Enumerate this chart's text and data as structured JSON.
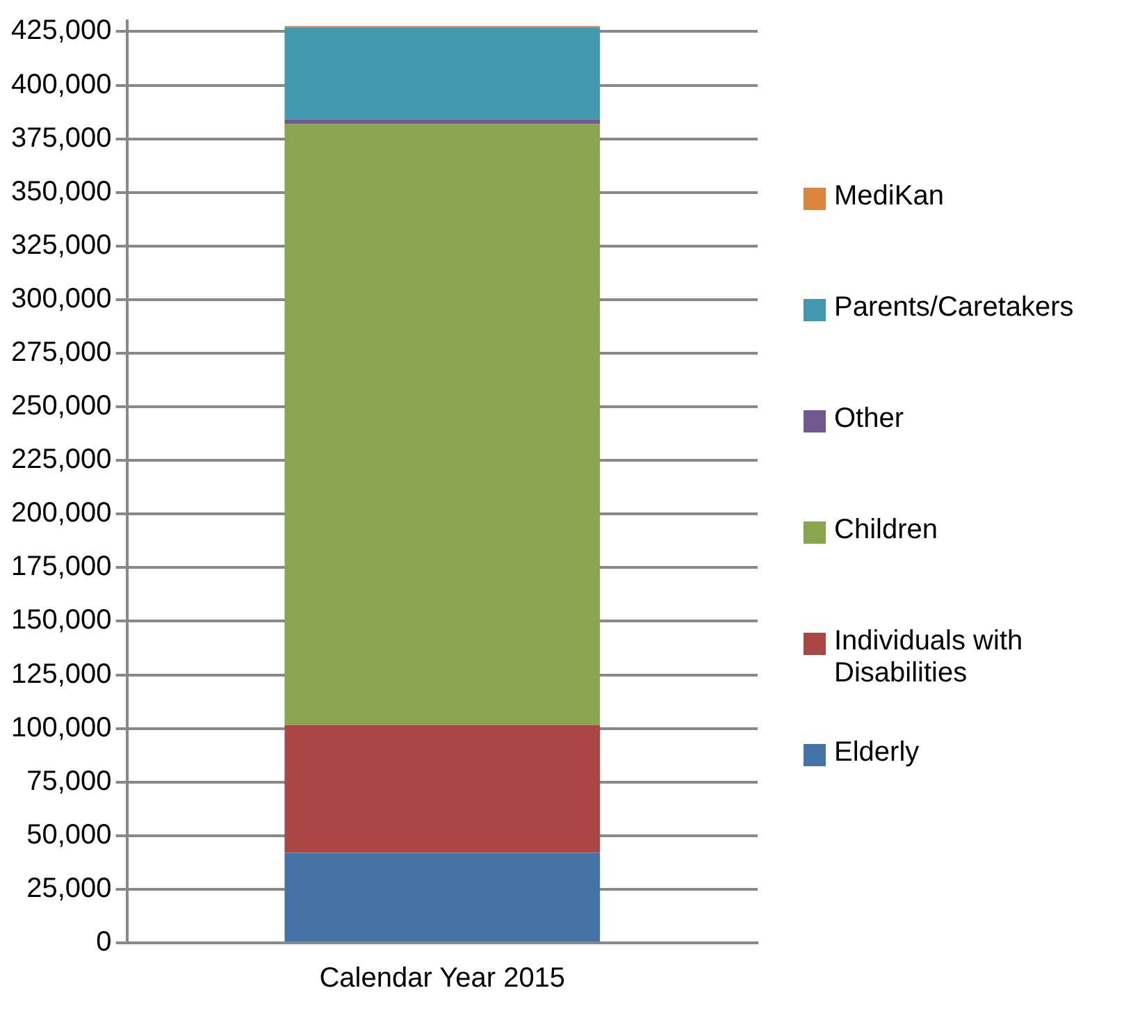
{
  "chart_data": {
    "type": "bar",
    "stacked": true,
    "categories": [
      "Calendar Year 2015"
    ],
    "series": [
      {
        "name": "Elderly",
        "color": "#4572a7",
        "values": [
          42000
        ]
      },
      {
        "name": "Individuals with Disabilities",
        "color": "#aa4643",
        "values": [
          59600
        ]
      },
      {
        "name": "Children",
        "color": "#89a54e",
        "values": [
          280300
        ]
      },
      {
        "name": "Other",
        "color": "#71588f",
        "values": [
          2200
        ]
      },
      {
        "name": "Parents/Caretakers",
        "color": "#4198af",
        "values": [
          42900
        ]
      },
      {
        "name": "MediKan",
        "color": "#db843d",
        "values": [
          600
        ]
      }
    ],
    "ylim": [
      0,
      430000
    ],
    "yticks": [
      0,
      {
        "value": 25000,
        "label": "25,000"
      },
      {
        "value": 50000,
        "label": "50,000"
      },
      {
        "value": 75000,
        "label": "75,000"
      },
      {
        "value": 100000,
        "label": "100,000"
      },
      {
        "value": 125000,
        "label": "125,000"
      },
      {
        "value": 150000,
        "label": "150,000"
      },
      {
        "value": 175000,
        "label": "175,000"
      },
      {
        "value": 200000,
        "label": "200,000"
      },
      {
        "value": 225000,
        "label": "225,000"
      },
      {
        "value": 250000,
        "label": "250,000"
      },
      {
        "value": 275000,
        "label": "275,000"
      },
      {
        "value": 300000,
        "label": "300,000"
      },
      {
        "value": 325000,
        "label": "325,000"
      },
      {
        "value": 350000,
        "label": "350,000"
      },
      {
        "value": 375000,
        "label": "375,000"
      },
      {
        "value": 400000,
        "label": "400,000"
      },
      {
        "value": 425000,
        "label": "425,000"
      }
    ],
    "grid": "y",
    "legend": "right"
  }
}
